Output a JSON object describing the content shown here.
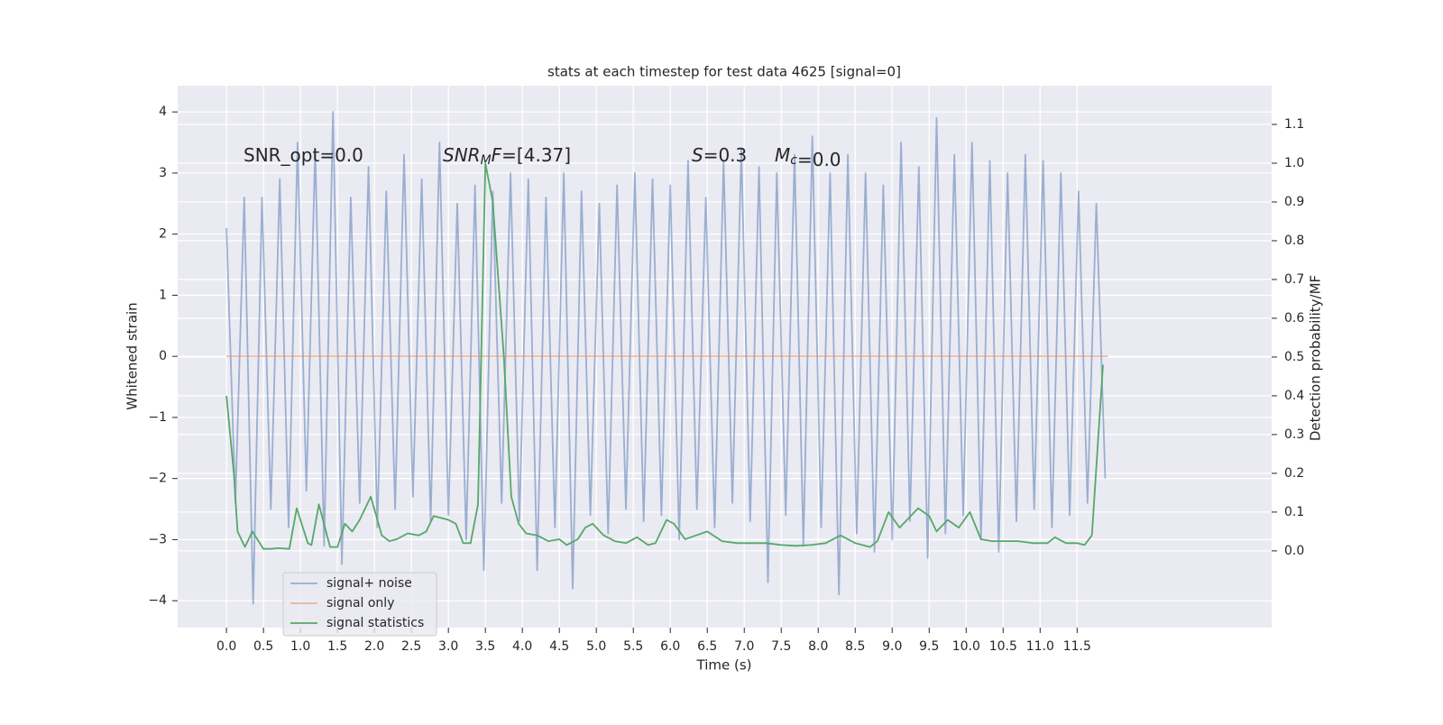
{
  "chart_data": {
    "type": "line",
    "title": "stats at each timestep for test data 4625 [signal=0]",
    "x_label": "Time (s)",
    "y_label": "Whitened strain",
    "y2_label": "Detection probability/MF",
    "xlim": [
      -0.66,
      14.13
    ],
    "ylim": [
      -4.44,
      4.43
    ],
    "y2lim": [
      -0.198,
      1.2
    ],
    "xticks": [
      {
        "value": 0,
        "label": "0.0"
      },
      0.5,
      {
        "value": 1,
        "label": "1.0"
      },
      1.5,
      {
        "value": 2,
        "label": "2.0"
      },
      2.5,
      {
        "value": 3,
        "label": "3.0"
      },
      3.5,
      {
        "value": 4,
        "label": "4.0"
      },
      4.5,
      {
        "value": 5,
        "label": "5.0"
      },
      5.5,
      {
        "value": 6,
        "label": "6.0"
      },
      6.5,
      {
        "value": 7,
        "label": "7.0"
      },
      7.5,
      {
        "value": 8,
        "label": "8.0"
      },
      8.5,
      {
        "value": 9,
        "label": "9.0"
      },
      9.5,
      {
        "value": 10,
        "label": "10.0"
      },
      10.5,
      {
        "value": 11,
        "label": "11.0"
      },
      11.5
    ],
    "yticks": [
      {
        "value": -4,
        "label": "−4"
      },
      {
        "value": -3,
        "label": "−3"
      },
      {
        "value": -2,
        "label": "−2"
      },
      {
        "value": -1,
        "label": "−1"
      },
      0,
      1,
      2,
      3,
      4
    ],
    "y2ticks": [
      {
        "value": 0,
        "label": "0.0"
      },
      0.1,
      0.2,
      0.3,
      0.4,
      0.5,
      0.6,
      0.7,
      0.8,
      0.9,
      {
        "value": 1,
        "label": "1.0"
      },
      1.1
    ],
    "grid": true,
    "legend": "lower left",
    "annotations": [
      {
        "parts": [
          {
            "text": "SNR_opt=0.0"
          }
        ]
      },
      {
        "parts": [
          {
            "text": "SNR",
            "style": "italic"
          },
          {
            "text": "M",
            "style": "sub"
          },
          {
            "text": "F=[4.37]",
            "style": "italic-first"
          }
        ]
      },
      {
        "parts": [
          {
            "text": "S",
            "style": "italic"
          },
          {
            "text": "=0.3"
          }
        ]
      },
      {
        "parts": [
          {
            "text": "M",
            "style": "italic"
          },
          {
            "text": "c",
            "style": "sub"
          },
          {
            "text": "=0.0"
          }
        ]
      }
    ],
    "series": [
      {
        "name": "signal+ noise",
        "color": "#4c72b0",
        "opacity": 0.5,
        "x": [
          0,
          0.12,
          0.24,
          0.36,
          0.48,
          0.6,
          0.72,
          0.84,
          0.96,
          1.08,
          1.2,
          1.32,
          1.44,
          1.56,
          1.68,
          1.8,
          1.92,
          2.04,
          2.16,
          2.28,
          2.4,
          2.52,
          2.64,
          2.76,
          2.88,
          3.0,
          3.12,
          3.24,
          3.36,
          3.48,
          3.6,
          3.72,
          3.84,
          3.96,
          4.08,
          4.2,
          4.32,
          4.44,
          4.56,
          4.68,
          4.8,
          4.92,
          5.04,
          5.16,
          5.28,
          5.4,
          5.52,
          5.64,
          5.76,
          5.88,
          6.0,
          6.12,
          6.24,
          6.36,
          6.48,
          6.6,
          6.72,
          6.84,
          6.96,
          7.08,
          7.2,
          7.32,
          7.44,
          7.56,
          7.68,
          7.8,
          7.92,
          8.04,
          8.16,
          8.28,
          8.4,
          8.52,
          8.64,
          8.76,
          8.88,
          9.0,
          9.12,
          9.24,
          9.36,
          9.48,
          9.6,
          9.72,
          9.84,
          9.96,
          10.08,
          10.2,
          10.32,
          10.44,
          10.56,
          10.68,
          10.8,
          10.92,
          11.04,
          11.16,
          11.28,
          11.4,
          11.52,
          11.64,
          11.76,
          11.88
        ],
        "values": [
          2.1,
          -2.4,
          2.6,
          -4.05,
          2.6,
          -2.5,
          2.9,
          -2.8,
          3.5,
          -2.2,
          3.4,
          -3.1,
          4.0,
          -3.4,
          2.6,
          -2.4,
          3.1,
          -2.8,
          2.7,
          -2.5,
          3.3,
          -2.3,
          2.9,
          -2.7,
          3.5,
          -2.6,
          2.5,
          -3.0,
          2.8,
          -3.5,
          2.7,
          -2.4,
          3.0,
          -2.7,
          2.9,
          -3.5,
          2.6,
          -2.8,
          3.0,
          -3.8,
          2.7,
          -2.6,
          2.5,
          -2.9,
          2.8,
          -2.5,
          3.0,
          -2.7,
          2.9,
          -2.6,
          2.8,
          -3.0,
          3.2,
          -2.5,
          2.6,
          -2.8,
          3.2,
          -2.4,
          3.4,
          -2.7,
          3.1,
          -3.7,
          3.0,
          -2.6,
          3.3,
          -3.1,
          3.6,
          -2.8,
          3.0,
          -3.9,
          3.3,
          -2.9,
          3.0,
          -3.2,
          2.8,
          -3.0,
          3.5,
          -2.7,
          3.1,
          -3.3,
          3.9,
          -2.9,
          3.3,
          -2.6,
          3.5,
          -3.0,
          3.2,
          -3.2,
          3.0,
          -2.7,
          3.3,
          -2.5,
          3.2,
          -2.8,
          3.0,
          -2.6,
          2.7,
          -2.4,
          2.5,
          -2.0
        ]
      },
      {
        "name": "signal only",
        "color": "#dd8452",
        "opacity": 0.5,
        "x": [
          0,
          11.92
        ],
        "values": [
          0,
          0
        ]
      },
      {
        "name": "signal statistics",
        "color": "#55a868",
        "opacity": 1,
        "axis": "y2",
        "x": [
          0.0,
          0.1,
          0.15,
          0.25,
          0.35,
          0.5,
          0.6,
          0.7,
          0.85,
          0.95,
          1.1,
          1.15,
          1.25,
          1.4,
          1.5,
          1.6,
          1.7,
          1.8,
          1.95,
          2.1,
          2.2,
          2.3,
          2.45,
          2.6,
          2.7,
          2.8,
          3.0,
          3.1,
          3.2,
          3.3,
          3.4,
          3.5,
          3.6,
          3.75,
          3.85,
          3.95,
          4.05,
          4.2,
          4.35,
          4.5,
          4.6,
          4.75,
          4.85,
          4.95,
          5.1,
          5.25,
          5.4,
          5.55,
          5.7,
          5.8,
          5.95,
          6.05,
          6.2,
          6.35,
          6.5,
          6.7,
          6.9,
          7.1,
          7.3,
          7.5,
          7.7,
          7.9,
          8.1,
          8.3,
          8.5,
          8.7,
          8.8,
          8.95,
          9.1,
          9.2,
          9.35,
          9.5,
          9.6,
          9.75,
          9.9,
          10.05,
          10.2,
          10.35,
          10.5,
          10.7,
          10.9,
          11.1,
          11.2,
          11.35,
          11.5,
          11.6,
          11.7,
          11.85
        ],
        "values": [
          0.4,
          0.2,
          0.05,
          0.01,
          0.05,
          0.005,
          0.005,
          0.007,
          0.005,
          0.11,
          0.02,
          0.015,
          0.12,
          0.01,
          0.01,
          0.07,
          0.05,
          0.08,
          0.14,
          0.04,
          0.025,
          0.03,
          0.045,
          0.04,
          0.05,
          0.09,
          0.08,
          0.07,
          0.02,
          0.02,
          0.12,
          1.0,
          0.9,
          0.5,
          0.14,
          0.07,
          0.045,
          0.04,
          0.025,
          0.03,
          0.015,
          0.03,
          0.06,
          0.07,
          0.04,
          0.025,
          0.02,
          0.035,
          0.015,
          0.02,
          0.08,
          0.07,
          0.03,
          0.04,
          0.05,
          0.025,
          0.02,
          0.02,
          0.02,
          0.015,
          0.013,
          0.015,
          0.02,
          0.04,
          0.02,
          0.01,
          0.025,
          0.1,
          0.06,
          0.08,
          0.11,
          0.09,
          0.05,
          0.08,
          0.06,
          0.1,
          0.03,
          0.025,
          0.025,
          0.025,
          0.02,
          0.02,
          0.035,
          0.02,
          0.02,
          0.015,
          0.04,
          0.48
        ]
      }
    ]
  }
}
